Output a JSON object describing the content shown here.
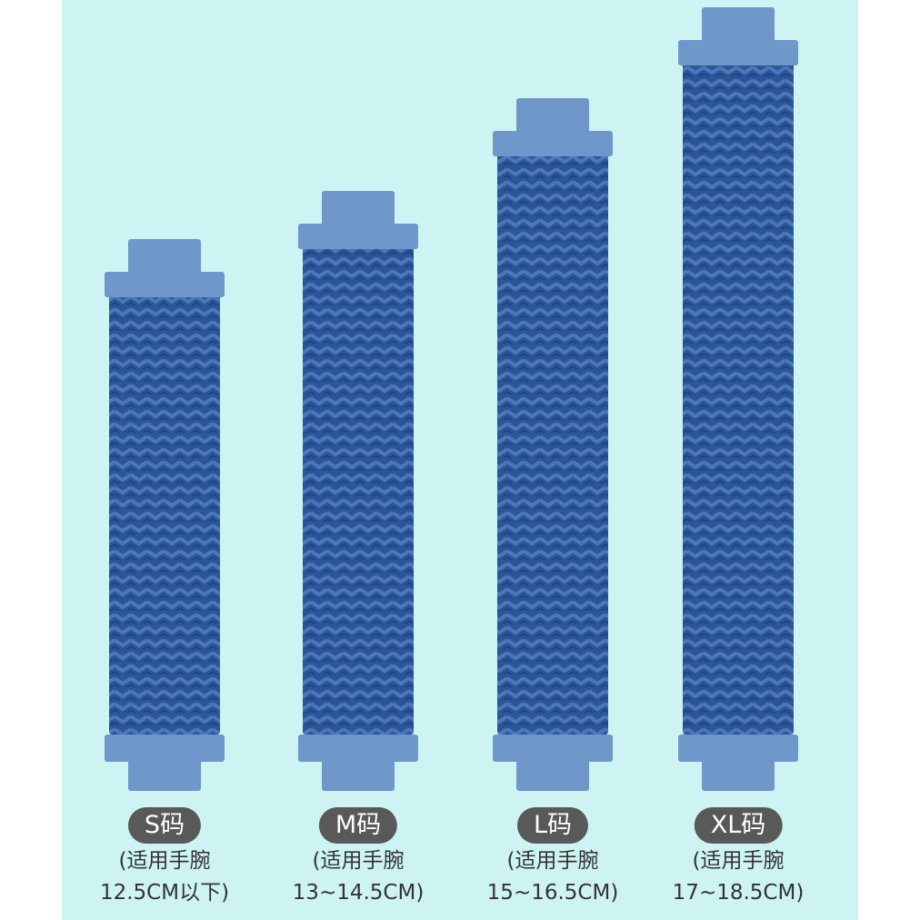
{
  "sizes": [
    {
      "label": "S码",
      "line1": "(适用手腕",
      "line2": "12.5CM以下)"
    },
    {
      "label": "M码",
      "line1": "(适用手腕",
      "line2": "13~14.5CM)"
    },
    {
      "label": "L码",
      "line1": "(适用手腕",
      "line2": "15~16.5CM)"
    },
    {
      "label": "XL码",
      "line1": "(适用手腕",
      "line2": "17~18.5CM)"
    }
  ]
}
